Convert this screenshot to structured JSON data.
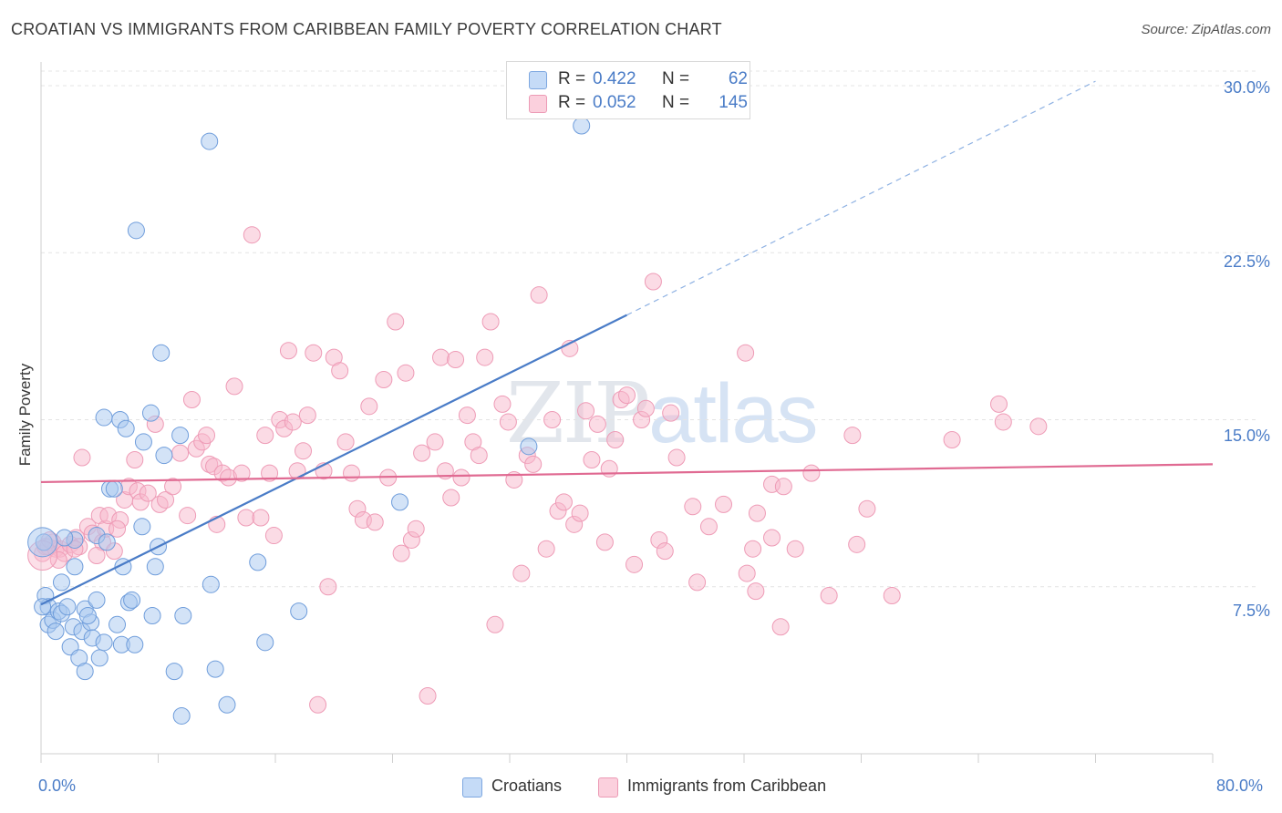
{
  "header": {
    "title": "CROATIAN VS IMMIGRANTS FROM CARIBBEAN FAMILY POVERTY CORRELATION CHART",
    "source": "Source: ZipAtlas.com"
  },
  "watermark": {
    "zip": "ZIP",
    "atlas": "atlas"
  },
  "legend": {
    "rows": [
      {
        "r_label": "R =",
        "r_value": "0.422",
        "n_label": "N =",
        "n_value": "62",
        "color": "#a8c8f0"
      },
      {
        "r_label": "R =",
        "r_value": "0.052",
        "n_label": "N =",
        "n_value": "145",
        "color": "#f8b8cc"
      }
    ]
  },
  "bottom_legend": {
    "items": [
      {
        "label": "Croatians",
        "color": "#a8c8f0"
      },
      {
        "label": "Immigrants from Caribbean",
        "color": "#f8b8cc"
      }
    ]
  },
  "chart_data": {
    "type": "scatter",
    "title": "CROATIAN VS IMMIGRANTS FROM CARIBBEAN FAMILY POVERTY CORRELATION CHART",
    "xlabel": "",
    "ylabel": "Family Poverty",
    "xlim": [
      0,
      80
    ],
    "ylim": [
      0,
      31
    ],
    "x_tick_labels": [
      "0.0%",
      "80.0%"
    ],
    "y_ticks": [
      7.5,
      15.0,
      22.5,
      30.0
    ],
    "y_tick_labels": [
      "7.5%",
      "15.0%",
      "22.5%",
      "30.0%"
    ],
    "grid": true,
    "legend_position": "top-center",
    "series": [
      {
        "name": "Croatians",
        "color": "#4a7cc7",
        "fill": "#a8c8f0",
        "trend": {
          "x0": 0,
          "y0": 6.7,
          "x1": 40,
          "y1": 19.7,
          "dashed_to_x": 72,
          "dashed_to_y": 30.2
        },
        "points": [
          [
            0.2,
            9.5
          ],
          [
            0.3,
            7.1
          ],
          [
            0.5,
            6.6
          ],
          [
            0.5,
            5.8
          ],
          [
            0.8,
            6.0
          ],
          [
            1.0,
            5.5
          ],
          [
            1.2,
            6.4
          ],
          [
            1.4,
            6.3
          ],
          [
            1.4,
            7.7
          ],
          [
            1.8,
            6.6
          ],
          [
            2.0,
            4.8
          ],
          [
            2.2,
            5.7
          ],
          [
            2.3,
            9.6
          ],
          [
            2.3,
            8.4
          ],
          [
            2.6,
            4.3
          ],
          [
            2.8,
            5.5
          ],
          [
            3.0,
            3.7
          ],
          [
            3.0,
            6.5
          ],
          [
            3.4,
            5.9
          ],
          [
            3.5,
            5.2
          ],
          [
            3.8,
            6.9
          ],
          [
            3.8,
            9.8
          ],
          [
            4.0,
            4.3
          ],
          [
            4.3,
            5.0
          ],
          [
            4.3,
            15.1
          ],
          [
            4.5,
            9.5
          ],
          [
            4.7,
            11.9
          ],
          [
            5.0,
            11.9
          ],
          [
            5.2,
            5.8
          ],
          [
            5.4,
            15.0
          ],
          [
            5.5,
            4.9
          ],
          [
            5.6,
            8.4
          ],
          [
            5.8,
            14.6
          ],
          [
            6.0,
            6.8
          ],
          [
            6.2,
            6.9
          ],
          [
            6.4,
            4.9
          ],
          [
            6.5,
            23.5
          ],
          [
            6.9,
            10.2
          ],
          [
            7.0,
            14.0
          ],
          [
            7.5,
            15.3
          ],
          [
            7.6,
            6.2
          ],
          [
            7.8,
            8.4
          ],
          [
            8.0,
            9.3
          ],
          [
            8.2,
            18.0
          ],
          [
            8.4,
            13.4
          ],
          [
            9.1,
            3.7
          ],
          [
            9.5,
            14.3
          ],
          [
            9.6,
            1.7
          ],
          [
            9.7,
            6.2
          ],
          [
            11.5,
            27.5
          ],
          [
            11.6,
            7.6
          ],
          [
            11.9,
            3.8
          ],
          [
            12.7,
            2.2
          ],
          [
            14.8,
            8.6
          ],
          [
            15.3,
            5.0
          ],
          [
            17.6,
            6.4
          ],
          [
            24.5,
            11.3
          ],
          [
            33.3,
            13.8
          ],
          [
            36.9,
            28.2
          ],
          [
            0.1,
            6.6
          ],
          [
            1.6,
            9.7
          ],
          [
            3.2,
            6.2
          ]
        ]
      },
      {
        "name": "Immigrants from Caribbean",
        "color": "#e06a92",
        "fill": "#f8b8cc",
        "trend": {
          "x0": 0,
          "y0": 12.2,
          "x1": 80,
          "y1": 13.0
        },
        "points": [
          [
            0.1,
            9.0
          ],
          [
            0.3,
            9.3
          ],
          [
            0.5,
            9.3
          ],
          [
            0.8,
            9.5
          ],
          [
            1.0,
            9.2
          ],
          [
            1.3,
            9.2
          ],
          [
            1.6,
            9.0
          ],
          [
            2.0,
            9.4
          ],
          [
            2.4,
            9.7
          ],
          [
            2.6,
            9.3
          ],
          [
            2.8,
            13.3
          ],
          [
            3.2,
            10.2
          ],
          [
            3.5,
            9.9
          ],
          [
            4.0,
            10.7
          ],
          [
            4.2,
            9.5
          ],
          [
            4.4,
            10.1
          ],
          [
            4.6,
            10.7
          ],
          [
            5.0,
            9.1
          ],
          [
            5.4,
            10.5
          ],
          [
            5.7,
            11.4
          ],
          [
            6.0,
            12.0
          ],
          [
            6.4,
            13.2
          ],
          [
            6.6,
            11.8
          ],
          [
            6.8,
            11.3
          ],
          [
            7.3,
            11.7
          ],
          [
            7.8,
            14.8
          ],
          [
            8.1,
            11.2
          ],
          [
            8.5,
            11.4
          ],
          [
            9.0,
            12.0
          ],
          [
            9.5,
            13.5
          ],
          [
            10.0,
            10.7
          ],
          [
            10.3,
            15.9
          ],
          [
            10.6,
            13.7
          ],
          [
            11.0,
            14.0
          ],
          [
            11.3,
            14.3
          ],
          [
            11.5,
            13.0
          ],
          [
            11.8,
            12.9
          ],
          [
            12.0,
            10.3
          ],
          [
            12.4,
            12.6
          ],
          [
            12.8,
            12.4
          ],
          [
            13.2,
            16.5
          ],
          [
            13.7,
            12.6
          ],
          [
            14.0,
            10.6
          ],
          [
            14.4,
            23.3
          ],
          [
            15.0,
            10.6
          ],
          [
            15.3,
            14.3
          ],
          [
            15.6,
            12.6
          ],
          [
            15.9,
            9.8
          ],
          [
            16.3,
            15.0
          ],
          [
            16.6,
            14.6
          ],
          [
            16.9,
            18.1
          ],
          [
            17.2,
            14.9
          ],
          [
            17.5,
            12.7
          ],
          [
            17.9,
            13.6
          ],
          [
            18.2,
            15.2
          ],
          [
            18.6,
            18.0
          ],
          [
            18.9,
            2.2
          ],
          [
            19.3,
            12.7
          ],
          [
            19.6,
            7.5
          ],
          [
            20.0,
            17.8
          ],
          [
            20.4,
            17.2
          ],
          [
            20.8,
            14.0
          ],
          [
            21.2,
            12.6
          ],
          [
            21.6,
            11.0
          ],
          [
            22.0,
            10.5
          ],
          [
            22.4,
            15.6
          ],
          [
            22.8,
            10.4
          ],
          [
            23.4,
            16.8
          ],
          [
            23.7,
            12.4
          ],
          [
            24.2,
            19.4
          ],
          [
            24.6,
            9.0
          ],
          [
            24.9,
            17.1
          ],
          [
            25.3,
            9.6
          ],
          [
            25.6,
            10.1
          ],
          [
            26.0,
            13.5
          ],
          [
            26.4,
            2.6
          ],
          [
            26.9,
            14.0
          ],
          [
            27.3,
            17.8
          ],
          [
            27.6,
            12.7
          ],
          [
            28.0,
            11.5
          ],
          [
            28.3,
            17.7
          ],
          [
            28.7,
            12.4
          ],
          [
            29.1,
            15.2
          ],
          [
            29.5,
            14.0
          ],
          [
            29.9,
            13.4
          ],
          [
            30.3,
            17.8
          ],
          [
            30.7,
            19.4
          ],
          [
            31.0,
            5.8
          ],
          [
            31.5,
            15.7
          ],
          [
            31.9,
            14.9
          ],
          [
            32.3,
            12.3
          ],
          [
            32.8,
            8.1
          ],
          [
            33.2,
            13.4
          ],
          [
            33.6,
            13.0
          ],
          [
            34.0,
            20.6
          ],
          [
            34.5,
            9.2
          ],
          [
            34.9,
            15.0
          ],
          [
            35.3,
            10.9
          ],
          [
            35.7,
            11.3
          ],
          [
            36.1,
            18.2
          ],
          [
            36.4,
            10.3
          ],
          [
            36.8,
            10.8
          ],
          [
            37.2,
            15.4
          ],
          [
            37.6,
            13.2
          ],
          [
            38.0,
            14.8
          ],
          [
            38.5,
            9.5
          ],
          [
            38.8,
            12.8
          ],
          [
            39.2,
            14.1
          ],
          [
            39.6,
            15.9
          ],
          [
            40.0,
            16.1
          ],
          [
            40.5,
            8.5
          ],
          [
            41.0,
            15.0
          ],
          [
            41.3,
            15.5
          ],
          [
            41.8,
            21.2
          ],
          [
            42.2,
            9.6
          ],
          [
            42.6,
            9.1
          ],
          [
            43.0,
            15.3
          ],
          [
            43.4,
            13.3
          ],
          [
            44.5,
            11.1
          ],
          [
            44.8,
            7.7
          ],
          [
            45.6,
            10.2
          ],
          [
            46.6,
            11.2
          ],
          [
            48.1,
            18.0
          ],
          [
            48.2,
            8.1
          ],
          [
            48.6,
            9.2
          ],
          [
            48.9,
            10.8
          ],
          [
            48.8,
            7.3
          ],
          [
            49.9,
            9.7
          ],
          [
            49.9,
            12.1
          ],
          [
            50.5,
            5.7
          ],
          [
            50.7,
            12.0
          ],
          [
            51.5,
            9.2
          ],
          [
            52.6,
            12.6
          ],
          [
            53.8,
            7.1
          ],
          [
            55.4,
            14.3
          ],
          [
            55.7,
            9.4
          ],
          [
            56.4,
            11.0
          ],
          [
            58.1,
            7.1
          ],
          [
            62.2,
            14.1
          ],
          [
            65.4,
            15.7
          ],
          [
            65.7,
            14.9
          ],
          [
            68.1,
            14.7
          ],
          [
            2.3,
            9.2
          ],
          [
            1.2,
            8.7
          ],
          [
            0.6,
            9.6
          ],
          [
            3.8,
            8.9
          ],
          [
            5.2,
            10.1
          ]
        ]
      }
    ]
  }
}
